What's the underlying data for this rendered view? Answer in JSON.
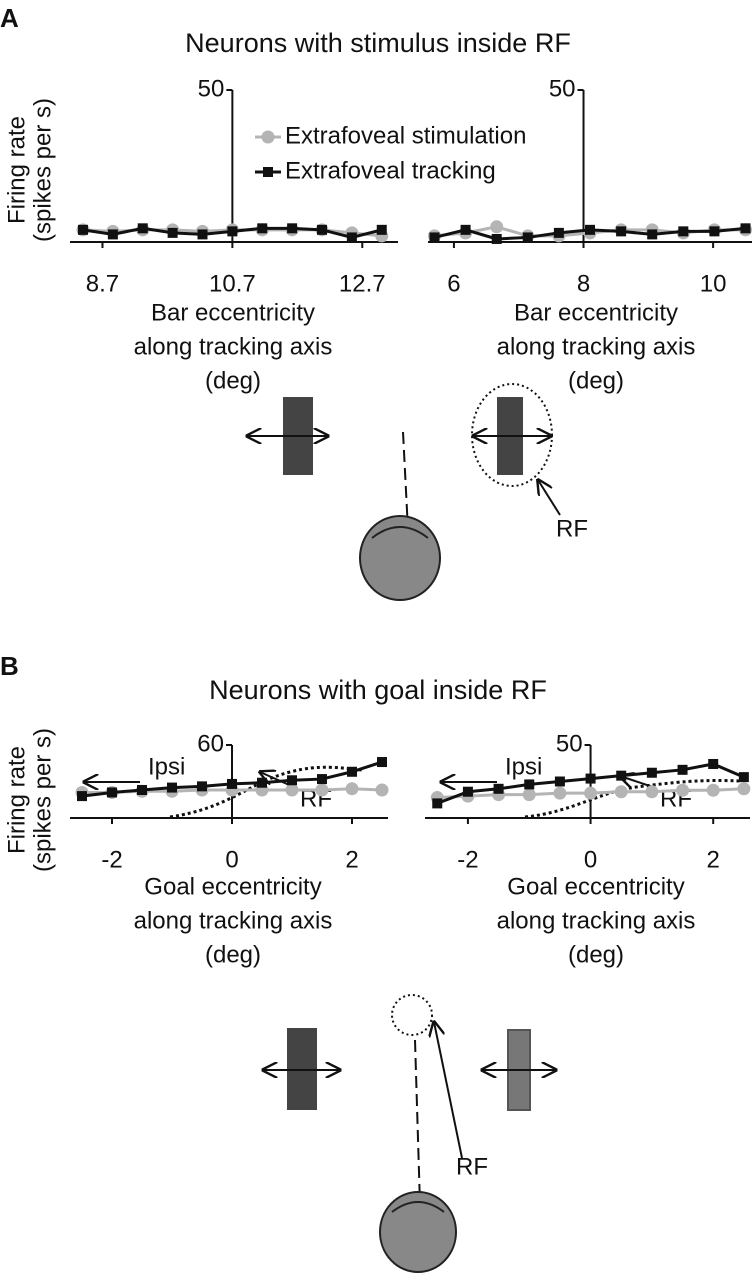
{
  "panels": [
    {
      "label": "A",
      "title": "Neurons with stimulus inside RF",
      "diagram_label": "RF"
    },
    {
      "label": "B",
      "title": "Neurons with goal inside RF",
      "diagram_label": "RF"
    }
  ],
  "chart_data": [
    {
      "type": "line",
      "ylabel": [
        "Firing rate",
        "(spikes per s)"
      ],
      "xlabel": [
        "Bar eccentricity",
        "along tracking axis",
        "(deg)"
      ],
      "x": [
        8.4,
        8.86,
        9.32,
        9.78,
        10.24,
        10.7,
        11.16,
        11.62,
        12.08,
        12.54,
        13.0
      ],
      "xlim": [
        8.2,
        13.25
      ],
      "ylim": [
        0,
        50
      ],
      "xticks": [
        8.7,
        10.7,
        12.7
      ],
      "yticks": [
        50
      ],
      "legend": "top-center",
      "series": [
        {
          "name": "Extrafoveal stimulation",
          "color": "#b4b4b4",
          "marker": "circle",
          "values": [
            4,
            3.5,
            4,
            4,
            3.5,
            4,
            4,
            4,
            4,
            3,
            2
          ]
        },
        {
          "name": "Extrafoveal tracking",
          "color": "#111111",
          "marker": "square",
          "values": [
            4,
            2.5,
            4.5,
            3,
            2.5,
            3.5,
            4.5,
            4.5,
            4,
            1.5,
            4
          ]
        }
      ]
    },
    {
      "type": "line",
      "xlabel": [
        "Bar eccentricity",
        "along tracking axis",
        "(deg)"
      ],
      "x": [
        5.7,
        6.18,
        6.66,
        7.14,
        7.62,
        8.1,
        8.58,
        9.06,
        9.54,
        10.02,
        10.5
      ],
      "xlim": [
        5.6,
        10.6
      ],
      "ylim": [
        0,
        50
      ],
      "xticks": [
        6,
        8,
        10
      ],
      "yticks": [
        50
      ],
      "series": [
        {
          "color": "#b4b4b4",
          "marker": "circle",
          "values": [
            2,
            3,
            5,
            2,
            2,
            3,
            4,
            4,
            3,
            4,
            4
          ]
        },
        {
          "color": "#111111",
          "marker": "square",
          "values": [
            1.5,
            4,
            1,
            1.5,
            3,
            4,
            3.5,
            2.5,
            3.5,
            3.5,
            4.5
          ]
        }
      ]
    },
    {
      "type": "line",
      "ylabel": [
        "Firing rate",
        "(spikes per s)"
      ],
      "xlabel": [
        "Goal eccentricity",
        "along tracking axis",
        "(deg)"
      ],
      "x": [
        -2.5,
        -2,
        -1.5,
        -1,
        -0.5,
        0,
        0.5,
        1,
        1.5,
        2,
        2.5
      ],
      "xlim": [
        -2.7,
        2.6
      ],
      "ylim": [
        0,
        60
      ],
      "xticks": [
        -2,
        0,
        2
      ],
      "yticks": [
        60
      ],
      "annotations": [
        "Ipsi",
        "RF"
      ],
      "series": [
        {
          "color": "#b4b4b4",
          "marker": "circle",
          "values": [
            21,
            21,
            22,
            22,
            23,
            23,
            23,
            23,
            23,
            24,
            23
          ]
        },
        {
          "color": "#111111",
          "marker": "square",
          "values": [
            18,
            21,
            23,
            25,
            26,
            28,
            29,
            31,
            32,
            38,
            46
          ]
        }
      ]
    },
    {
      "type": "line",
      "xlabel": [
        "Goal eccentricity",
        "along tracking axis",
        "(deg)"
      ],
      "x": [
        -2.5,
        -2,
        -1.5,
        -1,
        -0.5,
        0,
        0.5,
        1,
        1.5,
        2,
        2.5
      ],
      "xlim": [
        -2.7,
        2.6
      ],
      "ylim": [
        0,
        50
      ],
      "xticks": [
        -2,
        0,
        2
      ],
      "yticks": [
        50
      ],
      "annotations": [
        "Ipsi",
        "RF"
      ],
      "series": [
        {
          "color": "#b4b4b4",
          "marker": "circle",
          "values": [
            14,
            15,
            16,
            16,
            17,
            17,
            18,
            18,
            19,
            19,
            20
          ]
        },
        {
          "color": "#111111",
          "marker": "square",
          "values": [
            10,
            18,
            20,
            23,
            25,
            27,
            29,
            31,
            33,
            37,
            28
          ]
        }
      ]
    }
  ]
}
